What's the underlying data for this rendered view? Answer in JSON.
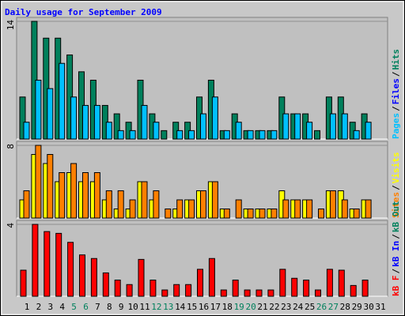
{
  "title": "Daily usage for September 2009",
  "legend_separator": "/",
  "chart_data": [
    {
      "type": "bar",
      "ylim": [
        0,
        14
      ],
      "yticks": [
        14
      ],
      "grid": true,
      "legend": [
        {
          "label": "Pages",
          "color": "#00c0ff"
        },
        {
          "label": "Files",
          "color": "#0000ff"
        },
        {
          "label": "Hits",
          "color": "#00805c"
        }
      ],
      "series": [
        {
          "color": "#00805c",
          "values": [
            5,
            14,
            12,
            12,
            10,
            8,
            7,
            4,
            3,
            2,
            7,
            3,
            1,
            2,
            2,
            5,
            7,
            1,
            3,
            1,
            1,
            1,
            5,
            3,
            3,
            1,
            5,
            5,
            2,
            3,
            0
          ]
        },
        {
          "color": "#00c0ff",
          "values": [
            2,
            7,
            6,
            9,
            5,
            4,
            4,
            2,
            1,
            1,
            4,
            2,
            0,
            1,
            1,
            3,
            5,
            1,
            2,
            1,
            1,
            1,
            3,
            3,
            2,
            0,
            3,
            3,
            1,
            2,
            0
          ]
        }
      ]
    },
    {
      "type": "bar",
      "ylim": [
        0,
        8
      ],
      "yticks": [
        8
      ],
      "grid": true,
      "legend": [
        {
          "label": "Sites",
          "color": "#ff8000"
        },
        {
          "label": "Visits",
          "color": "#ffff00"
        }
      ],
      "series": [
        {
          "color": "#ffff00",
          "values": [
            2,
            7,
            6,
            4,
            5,
            4,
            4,
            2,
            1,
            1,
            4,
            2,
            0,
            1,
            2,
            3,
            4,
            1,
            0,
            1,
            1,
            1,
            3,
            2,
            2,
            0,
            3,
            3,
            1,
            2,
            0
          ]
        },
        {
          "color": "#ff8000",
          "values": [
            3,
            8,
            7,
            5,
            6,
            5,
            5,
            3,
            3,
            2,
            4,
            3,
            1,
            2,
            2,
            3,
            4,
            1,
            2,
            1,
            1,
            1,
            2,
            2,
            2,
            1,
            3,
            2,
            1,
            2,
            0
          ]
        }
      ]
    },
    {
      "type": "bar",
      "ylim": [
        0,
        4
      ],
      "yticks": [
        4
      ],
      "grid": true,
      "legend": [
        {
          "label": "kB F",
          "color": "#ff0000"
        },
        {
          "label": "kB In",
          "color": "#0000ff"
        },
        {
          "label": "kB Out",
          "color": "#00805c"
        }
      ],
      "series": [
        {
          "color": "#ff0000",
          "values": [
            1.45,
            4.0,
            3.6,
            3.5,
            3.0,
            2.3,
            2.1,
            1.3,
            0.9,
            0.65,
            2.05,
            0.9,
            0.35,
            0.65,
            0.65,
            1.5,
            2.1,
            0.35,
            0.9,
            0.35,
            0.35,
            0.35,
            1.5,
            1.0,
            0.9,
            0.35,
            1.5,
            1.45,
            0.6,
            0.9,
            0
          ]
        }
      ],
      "categories": [
        "1",
        "2",
        "3",
        "4",
        "5",
        "6",
        "7",
        "8",
        "9",
        "10",
        "11",
        "12",
        "13",
        "14",
        "15",
        "16",
        "17",
        "18",
        "19",
        "20",
        "21",
        "22",
        "23",
        "24",
        "25",
        "26",
        "27",
        "28",
        "29",
        "30",
        "31"
      ],
      "highlighted_categories": [
        "5",
        "6",
        "12",
        "13",
        "19",
        "20",
        "26",
        "27"
      ],
      "category_color": "#000000",
      "highlight_color": "#00805c"
    }
  ]
}
